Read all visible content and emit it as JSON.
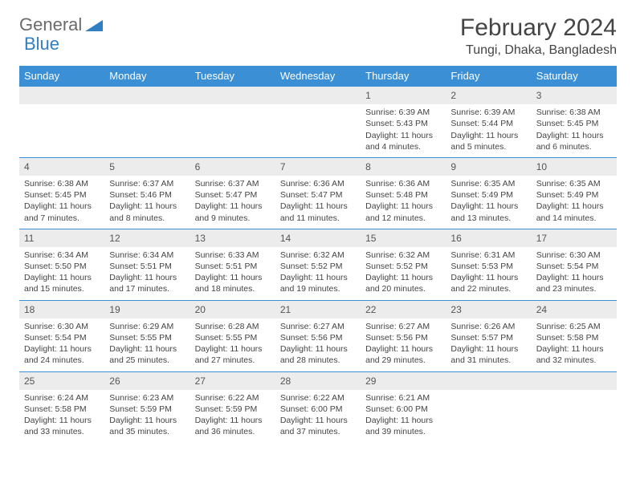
{
  "logo": {
    "general": "General",
    "blue": "Blue"
  },
  "header": {
    "month": "February 2024",
    "location": "Tungi, Dhaka, Bangladesh"
  },
  "colors": {
    "header_bg": "#3b8fd4",
    "daynum_bg": "#ececec",
    "row_border": "#3b8fd4"
  },
  "weekdays": [
    "Sunday",
    "Monday",
    "Tuesday",
    "Wednesday",
    "Thursday",
    "Friday",
    "Saturday"
  ],
  "weeks": [
    [
      null,
      null,
      null,
      null,
      {
        "n": "1",
        "sr": "6:39 AM",
        "ss": "5:43 PM",
        "dl": "11 hours and 4 minutes."
      },
      {
        "n": "2",
        "sr": "6:39 AM",
        "ss": "5:44 PM",
        "dl": "11 hours and 5 minutes."
      },
      {
        "n": "3",
        "sr": "6:38 AM",
        "ss": "5:45 PM",
        "dl": "11 hours and 6 minutes."
      }
    ],
    [
      {
        "n": "4",
        "sr": "6:38 AM",
        "ss": "5:45 PM",
        "dl": "11 hours and 7 minutes."
      },
      {
        "n": "5",
        "sr": "6:37 AM",
        "ss": "5:46 PM",
        "dl": "11 hours and 8 minutes."
      },
      {
        "n": "6",
        "sr": "6:37 AM",
        "ss": "5:47 PM",
        "dl": "11 hours and 9 minutes."
      },
      {
        "n": "7",
        "sr": "6:36 AM",
        "ss": "5:47 PM",
        "dl": "11 hours and 11 minutes."
      },
      {
        "n": "8",
        "sr": "6:36 AM",
        "ss": "5:48 PM",
        "dl": "11 hours and 12 minutes."
      },
      {
        "n": "9",
        "sr": "6:35 AM",
        "ss": "5:49 PM",
        "dl": "11 hours and 13 minutes."
      },
      {
        "n": "10",
        "sr": "6:35 AM",
        "ss": "5:49 PM",
        "dl": "11 hours and 14 minutes."
      }
    ],
    [
      {
        "n": "11",
        "sr": "6:34 AM",
        "ss": "5:50 PM",
        "dl": "11 hours and 15 minutes."
      },
      {
        "n": "12",
        "sr": "6:34 AM",
        "ss": "5:51 PM",
        "dl": "11 hours and 17 minutes."
      },
      {
        "n": "13",
        "sr": "6:33 AM",
        "ss": "5:51 PM",
        "dl": "11 hours and 18 minutes."
      },
      {
        "n": "14",
        "sr": "6:32 AM",
        "ss": "5:52 PM",
        "dl": "11 hours and 19 minutes."
      },
      {
        "n": "15",
        "sr": "6:32 AM",
        "ss": "5:52 PM",
        "dl": "11 hours and 20 minutes."
      },
      {
        "n": "16",
        "sr": "6:31 AM",
        "ss": "5:53 PM",
        "dl": "11 hours and 22 minutes."
      },
      {
        "n": "17",
        "sr": "6:30 AM",
        "ss": "5:54 PM",
        "dl": "11 hours and 23 minutes."
      }
    ],
    [
      {
        "n": "18",
        "sr": "6:30 AM",
        "ss": "5:54 PM",
        "dl": "11 hours and 24 minutes."
      },
      {
        "n": "19",
        "sr": "6:29 AM",
        "ss": "5:55 PM",
        "dl": "11 hours and 25 minutes."
      },
      {
        "n": "20",
        "sr": "6:28 AM",
        "ss": "5:55 PM",
        "dl": "11 hours and 27 minutes."
      },
      {
        "n": "21",
        "sr": "6:27 AM",
        "ss": "5:56 PM",
        "dl": "11 hours and 28 minutes."
      },
      {
        "n": "22",
        "sr": "6:27 AM",
        "ss": "5:56 PM",
        "dl": "11 hours and 29 minutes."
      },
      {
        "n": "23",
        "sr": "6:26 AM",
        "ss": "5:57 PM",
        "dl": "11 hours and 31 minutes."
      },
      {
        "n": "24",
        "sr": "6:25 AM",
        "ss": "5:58 PM",
        "dl": "11 hours and 32 minutes."
      }
    ],
    [
      {
        "n": "25",
        "sr": "6:24 AM",
        "ss": "5:58 PM",
        "dl": "11 hours and 33 minutes."
      },
      {
        "n": "26",
        "sr": "6:23 AM",
        "ss": "5:59 PM",
        "dl": "11 hours and 35 minutes."
      },
      {
        "n": "27",
        "sr": "6:22 AM",
        "ss": "5:59 PM",
        "dl": "11 hours and 36 minutes."
      },
      {
        "n": "28",
        "sr": "6:22 AM",
        "ss": "6:00 PM",
        "dl": "11 hours and 37 minutes."
      },
      {
        "n": "29",
        "sr": "6:21 AM",
        "ss": "6:00 PM",
        "dl": "11 hours and 39 minutes."
      },
      null,
      null
    ]
  ],
  "labels": {
    "sunrise": "Sunrise: ",
    "sunset": "Sunset: ",
    "daylight": "Daylight: "
  }
}
